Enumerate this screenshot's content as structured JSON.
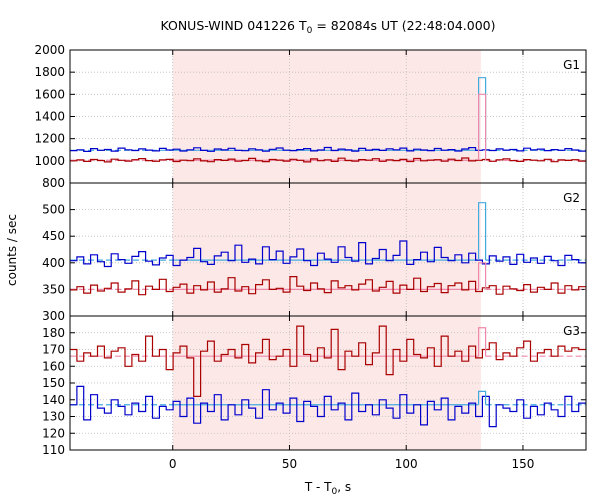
{
  "chart_data": {
    "type": "line",
    "title": "KONUS-WIND 041226 T",
    "title_sub": "0",
    "title_rest": " = 82084s UT (22:48:04.000)",
    "xlabel": "T - T",
    "xlabel_sub": "0",
    "xlabel_rest": ", s",
    "ylabel": "counts / sec",
    "xlim": [
      -44,
      177
    ],
    "xticks": [
      0,
      50,
      100,
      150
    ],
    "xtick_labels": [
      "0",
      "50",
      "100",
      "150"
    ],
    "bin_width": 2.944,
    "shaded_interval": [
      0,
      132
    ],
    "spike": {
      "start": 131,
      "end": 134
    },
    "colors": {
      "blue": "#0000cc",
      "red": "#aa0000",
      "cyan": "#44aadd",
      "pink": "#ee88aa",
      "shade": "#fde8e8"
    },
    "panels": [
      {
        "name": "G1",
        "ylim": [
          800,
          2000
        ],
        "yticks": [
          800,
          1000,
          1200,
          1400,
          1600,
          1800,
          2000
        ],
        "ytick_labels": [
          "800",
          "1000",
          "1200",
          "1400",
          "1600",
          "1800",
          "2000"
        ],
        "series": [
          {
            "color": "blue",
            "background": 1095,
            "peak": 1750,
            "values": [
              1092,
              1100,
              1085,
              1110,
              1095,
              1102,
              1088,
              1115,
              1100,
              1093,
              1108,
              1097,
              1090,
              1112,
              1098,
              1105,
              1089,
              1100,
              1118,
              1094,
              1086,
              1107,
              1099,
              1113,
              1095,
              1091,
              1109,
              1100,
              1087,
              1104,
              1116,
              1096,
              1092,
              1101,
              1110,
              1090,
              1098,
              1120,
              1093,
              1106,
              1099,
              1088,
              1112,
              1097,
              1103,
              1094,
              1109,
              1100,
              1115,
              1090,
              1105,
              1098,
              1092,
              1111,
              1096,
              1101,
              1089,
              1107,
              1119,
              1095,
              1100,
              1093,
              1108,
              1097,
              1102,
              1090,
              1114,
              1099,
              1106,
              1092,
              1101,
              1095,
              1110,
              1098,
              1088
            ]
          },
          {
            "color": "red",
            "background": 1005,
            "peak": 1600,
            "values": [
              1000,
              1008,
              995,
              1012,
              1003,
              990,
              1015,
              1005,
              998,
              1010,
              1020,
              1002,
              996,
              1009,
              1013,
              994,
              1006,
              1001,
              1018,
              999,
              992,
              1011,
              1004,
              1016,
              997,
              1003,
              1022,
              1000,
              993,
              1012,
              1007,
              998,
              1014,
              1005,
              990,
              1017,
              1001,
              1009,
              995,
              1024,
              1003,
              998,
              1011,
              1006,
              1019,
              996,
              1008,
              1002,
              1013,
              994,
              1021,
              1000,
              1007,
              1010,
              997,
              1015,
              1003,
              1026,
              999,
              1005,
              1012,
              996,
              1009,
              1018,
              1002,
              995,
              1011,
              1006,
              1000,
              1014,
              992,
              1008,
              1004,
              1010,
              997
            ]
          }
        ]
      },
      {
        "name": "G2",
        "ylim": [
          300,
          550
        ],
        "yticks": [
          300,
          350,
          400,
          450,
          500
        ],
        "ytick_labels": [
          "300",
          "350",
          "400",
          "450",
          "500"
        ],
        "series": [
          {
            "color": "blue",
            "background": 405,
            "peak": 513,
            "values": [
              404,
              411,
              398,
              415,
              402,
              393,
              417,
              406,
              399,
              412,
              421,
              403,
              396,
              409,
              414,
              395,
              405,
              410,
              427,
              402,
              397,
              413,
              420,
              404,
              433,
              401,
              407,
              398,
              430,
              406,
              422,
              399,
              411,
              426,
              404,
              395,
              418,
              407,
              401,
              430,
              410,
              403,
              438,
              398,
              408,
              425,
              404,
              414,
              441,
              397,
              406,
              420,
              402,
              429,
              410,
              404,
              415,
              400,
              418,
              405,
              398,
              413,
              403,
              411,
              397,
              416,
              401,
              409,
              399,
              412,
              404,
              395,
              414,
              406,
              400
            ]
          },
          {
            "color": "red",
            "background": 350,
            "peak": 400,
            "values": [
              349,
              355,
              343,
              358,
              347,
              352,
              362,
              345,
              351,
              366,
              340,
              356,
              350,
              369,
              346,
              354,
              360,
              343,
              357,
              349,
              364,
              345,
              351,
              372,
              347,
              355,
              342,
              359,
              368,
              350,
              352,
              345,
              374,
              356,
              348,
              362,
              351,
              344,
              366,
              353,
              357,
              349,
              360,
              368,
              347,
              354,
              365,
              343,
              358,
              350,
              371,
              346,
              355,
              361,
              344,
              357,
              362,
              349,
              365,
              346,
              353,
              357,
              341,
              356,
              351,
              348,
              359,
              345,
              354,
              350,
              362,
              343,
              357,
              349,
              355
            ]
          }
        ]
      },
      {
        "name": "G3",
        "ylim": [
          110,
          190
        ],
        "yticks": [
          110,
          120,
          130,
          140,
          150,
          160,
          170,
          180
        ],
        "ytick_labels": [
          "110",
          "120",
          "130",
          "140",
          "150",
          "160",
          "170",
          "180"
        ],
        "series": [
          {
            "color": "red",
            "background": 166,
            "peak": 183,
            "values": [
              170,
              163,
              168,
              166,
              172,
              165,
              169,
              171,
              160,
              167,
              163,
              178,
              166,
              170,
              158,
              168,
              172,
              165,
              142,
              169,
              175,
              163,
              167,
              170,
              165,
              173,
              162,
              168,
              176,
              164,
              166,
              170,
              160,
              184,
              167,
              163,
              171,
              165,
              182,
              158,
              169,
              166,
              174,
              161,
              168,
              184,
              155,
              170,
              163,
              176,
              167,
              165,
              171,
              160,
              178,
              166,
              169,
              163,
              172,
              165,
              170,
              174,
              164,
              168,
              166,
              171,
              175,
              163,
              168,
              170,
              166,
              172,
              169,
              171,
              170
            ]
          },
          {
            "color": "blue",
            "background": 137,
            "peak": 145,
            "values": [
              137,
              148,
              128,
              143,
              135,
              132,
              140,
              136,
              131,
              138,
              133,
              142,
              129,
              136,
              134,
              139,
              130,
              141,
              126,
              138,
              133,
              143,
              128,
              137,
              131,
              140,
              135,
              129,
              146,
              134,
              138,
              132,
              141,
              127,
              139,
              136,
              130,
              142,
              134,
              138,
              128,
              144,
              133,
              137,
              131,
              140,
              135,
              129,
              143,
              132,
              137,
              125,
              139,
              134,
              141,
              128,
              136,
              132,
              138,
              130,
              142,
              124,
              137,
              135,
              133,
              140,
              129,
              136,
              131,
              138,
              134,
              130,
              142,
              133,
              138
            ]
          }
        ]
      }
    ]
  }
}
